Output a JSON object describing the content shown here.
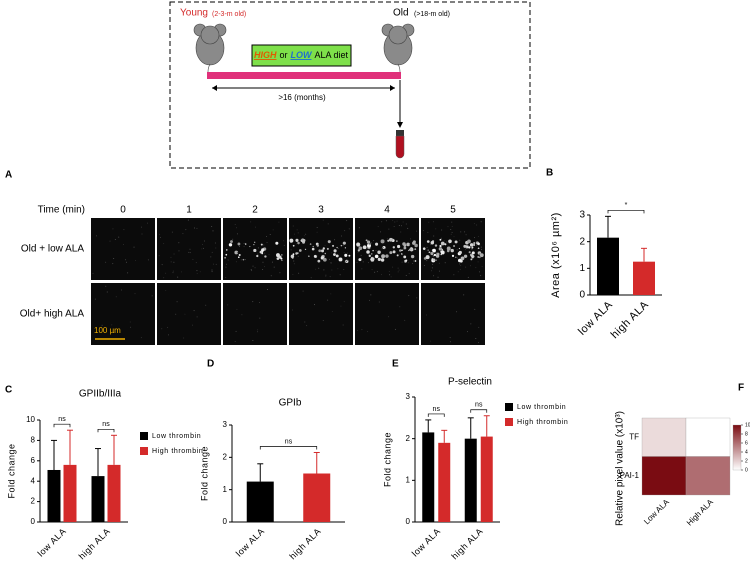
{
  "diagram": {
    "young": "Young",
    "young_age": "(2-3-m old)",
    "old": "Old",
    "old_age": "(>18-m old)",
    "high": "HIGH",
    "or": "or",
    "low": "LOW",
    "diet": "ALA diet",
    "duration": ">16  (months)"
  },
  "panel_letters": [
    "A",
    "B",
    "C",
    "D",
    "E",
    "F"
  ],
  "imaging": {
    "time_label": "Time (min)",
    "times": [
      0,
      1,
      2,
      3,
      4,
      5
    ],
    "rows": [
      "Old + low ALA",
      "Old+ high ALA"
    ],
    "scale_bar": "100 µm"
  },
  "chart_data": [
    {
      "type": "bar",
      "ylabel": "Area (x10⁶ µm²)",
      "categories": [
        "low ALA",
        "high ALA"
      ],
      "values": [
        2.15,
        1.25
      ],
      "errors": [
        0.8,
        0.5
      ],
      "colors": [
        "#000000",
        "#d42a2a"
      ],
      "ylim": [
        0,
        3
      ],
      "yticks": [
        0,
        1,
        2,
        3
      ],
      "annotations": [
        "*"
      ]
    },
    {
      "type": "bar",
      "title": "GPIIb/IIIa",
      "ylabel": "Fold change",
      "categories": [
        "low ALA",
        "high ALA"
      ],
      "series": [
        {
          "name": "Low thrombin",
          "color": "#000000",
          "values": [
            5.1,
            4.5
          ],
          "errors": [
            2.9,
            2.7
          ]
        },
        {
          "name": "High thrombin",
          "color": "#d42a2a",
          "values": [
            5.6,
            5.6
          ],
          "errors": [
            3.4,
            2.9
          ]
        }
      ],
      "ylim": [
        0,
        10
      ],
      "yticks": [
        0,
        2,
        4,
        6,
        8,
        10
      ],
      "annotations": [
        "ns",
        "ns"
      ]
    },
    {
      "type": "bar",
      "title": "GPIb",
      "ylabel": "Fold change",
      "categories": [
        "low ALA",
        "high ALA"
      ],
      "values": [
        1.25,
        1.5
      ],
      "errors": [
        0.55,
        0.65
      ],
      "colors": [
        "#000000",
        "#d42a2a"
      ],
      "ylim": [
        0,
        3
      ],
      "yticks": [
        0,
        1,
        2,
        3
      ],
      "annotations": [
        "ns"
      ]
    },
    {
      "type": "bar",
      "title": "P-selectin",
      "ylabel": "Fold change",
      "categories": [
        "low ALA",
        "high ALA"
      ],
      "series": [
        {
          "name": "Low thrombin",
          "color": "#000000",
          "values": [
            2.15,
            2.0
          ],
          "errors": [
            0.3,
            0.5
          ]
        },
        {
          "name": "High thrombin",
          "color": "#d42a2a",
          "values": [
            1.9,
            2.05
          ],
          "errors": [
            0.3,
            0.5
          ]
        }
      ],
      "ylim": [
        0,
        3
      ],
      "yticks": [
        0,
        1,
        2,
        3
      ],
      "annotations": [
        "ns",
        "ns"
      ]
    },
    {
      "type": "heatmap",
      "ylabel": "Relative pixel value (x10³)",
      "rows": [
        "TF",
        "PAI-1"
      ],
      "columns": [
        "Low ALA",
        "High ALA"
      ],
      "values": [
        [
          1.5,
          0
        ],
        [
          10,
          6
        ]
      ],
      "clim": [
        0,
        10
      ],
      "cticks": [
        0,
        2,
        4,
        6,
        8,
        10
      ],
      "colors": [
        "#ffffff",
        "#7a0c12"
      ]
    }
  ]
}
